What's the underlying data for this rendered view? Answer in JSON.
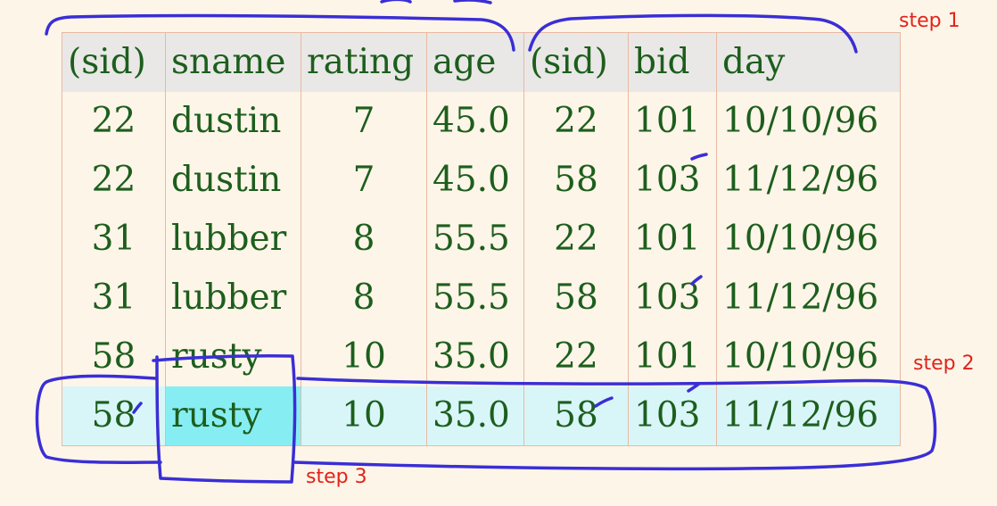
{
  "table": {
    "headers": [
      "(sid)",
      "sname",
      "rating",
      "age",
      "(sid)",
      "bid",
      "day"
    ],
    "rows": [
      [
        "22",
        "dustin",
        "7",
        "45.0",
        "22",
        "101",
        "10/10/96"
      ],
      [
        "22",
        "dustin",
        "7",
        "45.0",
        "58",
        "103",
        "11/12/96"
      ],
      [
        "31",
        "lubber",
        "8",
        "55.5",
        "22",
        "101",
        "10/10/96"
      ],
      [
        "31",
        "lubber",
        "8",
        "55.5",
        "58",
        "103",
        "11/12/96"
      ],
      [
        "58",
        "rusty",
        "10",
        "35.0",
        "22",
        "101",
        "10/10/96"
      ],
      [
        "58",
        "rusty",
        "10",
        "35.0",
        "58",
        "103",
        "11/12/96"
      ]
    ],
    "highlighted_row": 5,
    "highlighted_cell": [
      5,
      1
    ]
  },
  "annotations": {
    "step1": "step 1",
    "step2": "step 2",
    "step3": "step 3"
  },
  "colors": {
    "background": "#fdf5e8",
    "text": "#1d5e1d",
    "border": "#e9b9a3",
    "header_bg": "#e9e8e6",
    "row_highlight": "#d8f6f8",
    "cell_highlight": "#86eef3",
    "ink": "#3a2ed6",
    "label": "#e0241c"
  }
}
